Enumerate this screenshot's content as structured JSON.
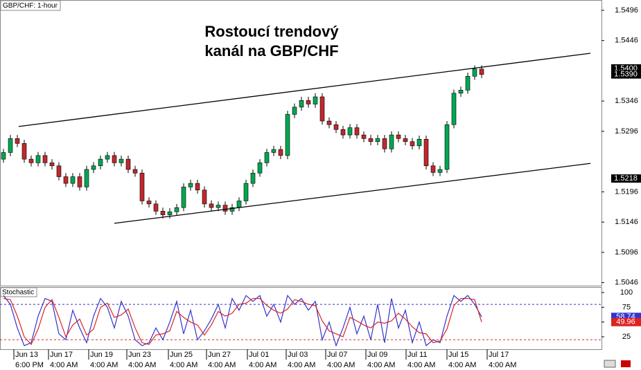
{
  "chart_data": [
    {
      "type": "candlestick",
      "title": "GBP/CHF: 1-hour",
      "annotation": [
        "Rostoucí trendový",
        "kanál na GBP/CHF"
      ],
      "x": [
        0.5,
        1.5,
        2.5,
        3.5,
        4.5,
        5.5,
        6.5,
        7.5,
        8.5,
        9.5,
        10.5,
        11.5,
        12.5,
        13.5,
        14.5,
        15.5,
        16.5,
        17.5,
        18.5,
        19.5,
        20.5,
        21.5,
        22.5,
        23.5,
        24.5,
        25.5,
        26.5,
        27.5,
        28.5,
        29.5,
        30.5,
        31.5,
        32.5,
        33.5,
        34.5,
        35.5,
        36.5,
        37.5,
        38.5,
        39.5,
        40.5,
        41.5,
        42.5,
        43.5,
        44.5,
        45.5,
        46.5,
        47.5,
        48.5,
        49.5,
        50.5,
        51.5,
        52.5,
        53.5,
        54.5,
        55.5,
        56.5,
        57.5,
        58.5,
        59.5,
        60.5,
        61.5,
        62.5,
        63.5,
        64.5,
        65.5,
        66.5,
        67.5,
        68.5,
        69.5
      ],
      "open": [
        1.525,
        1.5261,
        1.5284,
        1.5276,
        1.525,
        1.5244,
        1.5256,
        1.5244,
        1.5239,
        1.5221,
        1.521,
        1.5221,
        1.5204,
        1.5233,
        1.5239,
        1.525,
        1.5256,
        1.5244,
        1.525,
        1.5233,
        1.5227,
        1.5181,
        1.5176,
        1.5164,
        1.5158,
        1.5163,
        1.517,
        1.5204,
        1.521,
        1.5199,
        1.5176,
        1.517,
        1.5174,
        1.5164,
        1.517,
        1.5181,
        1.521,
        1.5227,
        1.5244,
        1.5261,
        1.5266,
        1.5256,
        1.5324,
        1.5336,
        1.5347,
        1.5341,
        1.5353,
        1.5313,
        1.5307,
        1.5299,
        1.529,
        1.5302,
        1.529,
        1.5284,
        1.5279,
        1.5284,
        1.5267,
        1.529,
        1.5284,
        1.5279,
        1.5272,
        1.5283,
        1.5239,
        1.5228,
        1.5233,
        1.5307,
        1.5359,
        1.5364,
        1.5387,
        1.5399
      ],
      "high": [
        1.5267,
        1.529,
        1.529,
        1.5282,
        1.5256,
        1.5262,
        1.5262,
        1.525,
        1.5245,
        1.5227,
        1.5227,
        1.5227,
        1.5239,
        1.5245,
        1.5256,
        1.5262,
        1.5262,
        1.5256,
        1.5256,
        1.5239,
        1.5233,
        1.5187,
        1.5182,
        1.517,
        1.5169,
        1.5176,
        1.521,
        1.5216,
        1.5216,
        1.5205,
        1.5182,
        1.518,
        1.518,
        1.5176,
        1.5187,
        1.5216,
        1.5233,
        1.525,
        1.5267,
        1.5272,
        1.5272,
        1.533,
        1.5342,
        1.5353,
        1.5353,
        1.5359,
        1.5359,
        1.5319,
        1.5313,
        1.5305,
        1.5308,
        1.5308,
        1.5296,
        1.529,
        1.529,
        1.529,
        1.5296,
        1.5296,
        1.529,
        1.5285,
        1.5289,
        1.5289,
        1.5245,
        1.5239,
        1.5313,
        1.5365,
        1.537,
        1.5393,
        1.5405,
        1.5405
      ],
      "low": [
        1.5244,
        1.5255,
        1.527,
        1.5244,
        1.5238,
        1.5238,
        1.5238,
        1.5233,
        1.5215,
        1.5204,
        1.5204,
        1.5198,
        1.5198,
        1.5227,
        1.5233,
        1.5244,
        1.5238,
        1.5238,
        1.5227,
        1.5221,
        1.5175,
        1.517,
        1.5158,
        1.5152,
        1.5152,
        1.5157,
        1.5164,
        1.5198,
        1.5193,
        1.517,
        1.5164,
        1.5164,
        1.5158,
        1.5158,
        1.5164,
        1.5175,
        1.5204,
        1.5221,
        1.5238,
        1.5255,
        1.525,
        1.525,
        1.5318,
        1.533,
        1.5335,
        1.5335,
        1.5307,
        1.5301,
        1.5293,
        1.5284,
        1.5284,
        1.5284,
        1.5278,
        1.5273,
        1.5273,
        1.5261,
        1.5261,
        1.5278,
        1.5273,
        1.5266,
        1.5266,
        1.5233,
        1.5222,
        1.5222,
        1.5227,
        1.5301,
        1.5353,
        1.5358,
        1.5381,
        1.5384
      ],
      "close": [
        1.5261,
        1.5284,
        1.5276,
        1.525,
        1.5244,
        1.5256,
        1.5244,
        1.5239,
        1.5221,
        1.521,
        1.5221,
        1.5204,
        1.5233,
        1.5239,
        1.525,
        1.5256,
        1.5244,
        1.525,
        1.5233,
        1.5227,
        1.5181,
        1.5176,
        1.5164,
        1.5158,
        1.5163,
        1.517,
        1.5204,
        1.521,
        1.5199,
        1.5176,
        1.517,
        1.5174,
        1.5164,
        1.517,
        1.5181,
        1.521,
        1.5227,
        1.5244,
        1.5261,
        1.5266,
        1.5256,
        1.5324,
        1.5336,
        1.5347,
        1.5341,
        1.5353,
        1.5313,
        1.5307,
        1.5299,
        1.529,
        1.5302,
        1.529,
        1.5284,
        1.5279,
        1.5284,
        1.5267,
        1.529,
        1.5284,
        1.5279,
        1.5272,
        1.5283,
        1.5239,
        1.5228,
        1.5233,
        1.5307,
        1.5359,
        1.5364,
        1.5387,
        1.5399,
        1.539
      ],
      "up_color": "#00a651",
      "down_color": "#c0282d",
      "xlim": [
        0,
        86.8
      ],
      "ylim": [
        1.5041,
        1.5513
      ],
      "yticks": [
        1.5496,
        1.5446,
        1.5346,
        1.5296,
        1.5196,
        1.5146,
        1.5096,
        1.5046
      ],
      "xticks": [
        {
          "value": 2.0,
          "label": "Jun 13"
        },
        {
          "value": 7.0,
          "label": "Jun 17"
        },
        {
          "value": 12.8,
          "label": "Jun 19"
        },
        {
          "value": 18.3,
          "label": "Jun 23"
        },
        {
          "value": 24.3,
          "label": "Jun 25"
        },
        {
          "value": 29.8,
          "label": "Jun 27"
        },
        {
          "value": 35.7,
          "label": "Jul 01"
        },
        {
          "value": 41.3,
          "label": "Jul 03"
        },
        {
          "value": 47.0,
          "label": "Jul 07"
        },
        {
          "value": 52.8,
          "label": "Jul 09"
        },
        {
          "value": 58.6,
          "label": "Jul 11"
        },
        {
          "value": 64.5,
          "label": "Jul 15"
        },
        {
          "value": 70.3,
          "label": "Jul 17"
        }
      ],
      "xtick_sublabels": [
        "6:00 PM",
        "4:00 AM",
        "4:00 AM",
        "4:00 AM",
        "4:00 AM",
        "4:00 AM",
        "4:00 AM",
        "4:00 AM",
        "4:00 AM",
        "4:00 AM",
        "4:00 AM",
        "4:00 AM",
        "4:00 AM"
      ],
      "trendlines": [
        {
          "x": [
            2.7,
            85.2
          ],
          "y": [
            1.5304,
            1.5425
          ]
        },
        {
          "x": [
            16.5,
            85.2
          ],
          "y": [
            1.5144,
            1.5243
          ]
        }
      ],
      "price_labels": [
        {
          "value": 1.54,
          "label": "1.5400"
        },
        {
          "value": 1.539,
          "label": "1.5390"
        },
        {
          "value": 1.5218,
          "label": "1.5218"
        }
      ]
    },
    {
      "type": "line",
      "title": "Stochastic",
      "x": [
        0.5,
        1.5,
        2.5,
        3.5,
        4.5,
        5.5,
        6.5,
        7.5,
        8.5,
        9.5,
        10.5,
        11.5,
        12.5,
        13.5,
        14.5,
        15.5,
        16.5,
        17.5,
        18.5,
        19.5,
        20.5,
        21.5,
        22.5,
        23.5,
        24.5,
        25.5,
        26.5,
        27.5,
        28.5,
        29.5,
        30.5,
        31.5,
        32.5,
        33.5,
        34.5,
        35.5,
        36.5,
        37.5,
        38.5,
        39.5,
        40.5,
        41.5,
        42.5,
        43.5,
        44.5,
        45.5,
        46.5,
        47.5,
        48.5,
        49.5,
        50.5,
        51.5,
        52.5,
        53.5,
        54.5,
        55.5,
        56.5,
        57.5,
        58.5,
        59.5,
        60.5,
        61.5,
        62.5,
        63.5,
        64.5,
        65.5,
        66.5,
        67.5,
        68.5,
        69.5
      ],
      "series": [
        {
          "color": "#3333cc",
          "values": [
            95,
            80,
            40,
            10,
            15,
            60,
            90,
            85,
            30,
            20,
            70,
            40,
            15,
            60,
            90,
            75,
            40,
            85,
            60,
            20,
            10,
            15,
            40,
            20,
            50,
            85,
            30,
            70,
            20,
            35,
            55,
            80,
            40,
            90,
            70,
            95,
            85,
            95,
            60,
            80,
            50,
            95,
            80,
            90,
            70,
            85,
            20,
            50,
            10,
            40,
            75,
            30,
            60,
            20,
            80,
            15,
            90,
            40,
            70,
            15,
            50,
            10,
            20,
            15,
            60,
            95,
            85,
            95,
            80,
            58.74
          ]
        },
        {
          "color": "#dd2222",
          "values": [
            90,
            88,
            60,
            25,
            12,
            38,
            75,
            88,
            58,
            25,
            45,
            55,
            28,
            38,
            75,
            82,
            58,
            62,
            72,
            40,
            15,
            12,
            28,
            30,
            35,
            68,
            58,
            50,
            45,
            28,
            45,
            68,
            60,
            65,
            80,
            82,
            90,
            90,
            78,
            70,
            65,
            72,
            88,
            85,
            80,
            78,
            52,
            35,
            30,
            25,
            58,
            52,
            45,
            40,
            50,
            48,
            52,
            65,
            55,
            42,
            32,
            30,
            15,
            18,
            38,
            78,
            90,
            90,
            88,
            49.96
          ]
        }
      ],
      "xlim": [
        0,
        86.8
      ],
      "ylim": [
        3.9,
        109.4
      ],
      "yticks": [
        100,
        75,
        50,
        25
      ],
      "levels": [
        {
          "value": 80,
          "color": "#3333cc"
        },
        {
          "value": 20,
          "color": "#dd2222"
        }
      ]
    }
  ]
}
